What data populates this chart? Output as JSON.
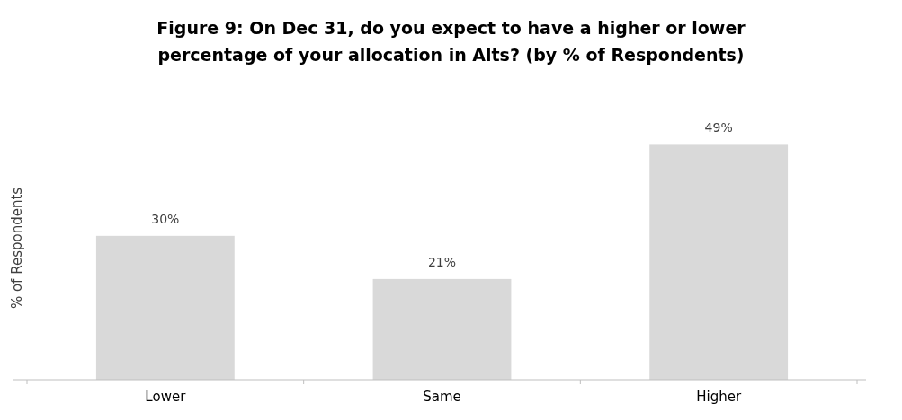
{
  "chart_data": {
    "type": "bar",
    "title": "Figure 9: On Dec 31, do you expect to have a higher or lower percentage of your allocation in Alts? (by % of Respondents)",
    "ylabel": "% of Respondents",
    "categories": [
      "Lower",
      "Same",
      "Higher"
    ],
    "values": [
      30,
      21,
      49
    ],
    "value_labels": [
      "30%",
      "21%",
      "49%"
    ],
    "color": "#d9d9d9"
  }
}
